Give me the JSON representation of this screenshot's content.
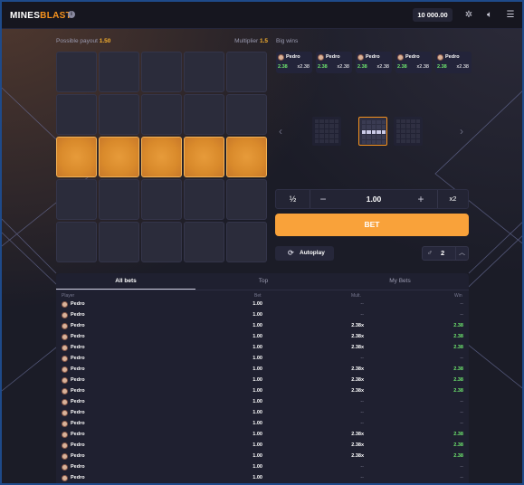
{
  "header": {
    "logo_part1": "MINES",
    "logo_part2": "BLAST",
    "balance": "10 000.00",
    "icons": [
      "info-icon",
      "sound-off-icon",
      "volume-icon",
      "menu-icon"
    ]
  },
  "game": {
    "possible_payout_label": "Possible payout",
    "possible_payout_value": "1.50",
    "multiplier_label": "Multiplier",
    "multiplier_value": "1.5",
    "grid_rows": 5,
    "grid_cols": 5,
    "highlighted_row": 3
  },
  "big_wins": {
    "title": "Big wins",
    "cards": [
      {
        "player": "Pedro",
        "amount": "2.38",
        "mult": "x2.38"
      },
      {
        "player": "Pedro",
        "amount": "2.38",
        "mult": "x2.38"
      },
      {
        "player": "Pedro",
        "amount": "2.38",
        "mult": "x2.38"
      },
      {
        "player": "Pedro",
        "amount": "2.38",
        "mult": "x2.38"
      },
      {
        "player": "Pedro",
        "amount": "2.38",
        "mult": "x2.38"
      }
    ]
  },
  "bet": {
    "half_label": "½",
    "minus_label": "−",
    "value": "1.00",
    "plus_label": "+",
    "double_label": "x2",
    "bet_button": "BET",
    "autoplay_label": "Autoplay",
    "mines_count": "2"
  },
  "bets_table": {
    "tabs": [
      "All bets",
      "Top",
      "My Bets"
    ],
    "columns": [
      "Player",
      "Bet",
      "Mult.",
      "Win"
    ],
    "rows": [
      {
        "player": "Pedro",
        "bet": "1.00",
        "mult": "--",
        "win": "--"
      },
      {
        "player": "Pedro",
        "bet": "1.00",
        "mult": "--",
        "win": "--"
      },
      {
        "player": "Pedro",
        "bet": "1.00",
        "mult": "2.38x",
        "win": "2.38"
      },
      {
        "player": "Pedro",
        "bet": "1.00",
        "mult": "2.38x",
        "win": "2.38"
      },
      {
        "player": "Pedro",
        "bet": "1.00",
        "mult": "2.38x",
        "win": "2.38"
      },
      {
        "player": "Pedro",
        "bet": "1.00",
        "mult": "--",
        "win": "--"
      },
      {
        "player": "Pedro",
        "bet": "1.00",
        "mult": "2.38x",
        "win": "2.38"
      },
      {
        "player": "Pedro",
        "bet": "1.00",
        "mult": "2.38x",
        "win": "2.38"
      },
      {
        "player": "Pedro",
        "bet": "1.00",
        "mult": "2.38x",
        "win": "2.38"
      },
      {
        "player": "Pedro",
        "bet": "1.00",
        "mult": "--",
        "win": "--"
      },
      {
        "player": "Pedro",
        "bet": "1.00",
        "mult": "--",
        "win": "--"
      },
      {
        "player": "Pedro",
        "bet": "1.00",
        "mult": "--",
        "win": "--"
      },
      {
        "player": "Pedro",
        "bet": "1.00",
        "mult": "2.38x",
        "win": "2.38"
      },
      {
        "player": "Pedro",
        "bet": "1.00",
        "mult": "2.38x",
        "win": "2.38"
      },
      {
        "player": "Pedro",
        "bet": "1.00",
        "mult": "2.38x",
        "win": "2.38"
      },
      {
        "player": "Pedro",
        "bet": "1.00",
        "mult": "--",
        "win": "--"
      },
      {
        "player": "Pedro",
        "bet": "1.00",
        "mult": "--",
        "win": "--"
      }
    ]
  },
  "colors": {
    "accent": "#f7931e",
    "bet_button": "#f9a23a",
    "win_green": "#6ee76e",
    "tile": "#2b2c3b",
    "tile_gold": "#d98a2b"
  }
}
